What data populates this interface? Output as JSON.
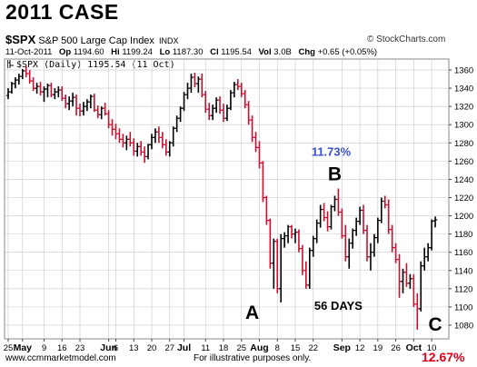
{
  "title": "2011 CASE",
  "header": {
    "symbol": "$SPX",
    "description": "S&P 500 Large Cap Index",
    "exchange": "INDX",
    "date": "11-Oct-2011",
    "op_label": "Op",
    "op": "1194.60",
    "hi_label": "Hi",
    "hi": "1199.24",
    "lo_label": "Lo",
    "lo": "1187.30",
    "cl_label": "Cl",
    "cl": "1195.54",
    "vol_label": "Vol",
    "vol": "3.0B",
    "chg_label": "Chg",
    "chg": "+0.65 (+0.05%)",
    "legend": "$SPX (Daily) 1195.54 (11 Oct)",
    "brand": "© StockCharts.com",
    "up_icon": "up-arrow-icon"
  },
  "footer": {
    "website": "www.ccmmarketmodel.com",
    "note": "For illustrative purposes only.",
    "percent": "12.67%"
  },
  "colors": {
    "down": "#c8102e",
    "up": "#000000",
    "blue": "#3a4fd0",
    "red": "#e0001a",
    "grid": "#c8c8c8"
  },
  "chart_data": {
    "type": "ohlc",
    "ylim": [
      1065,
      1372
    ],
    "y_ticks": [
      1080,
      1100,
      1120,
      1140,
      1160,
      1180,
      1200,
      1220,
      1240,
      1260,
      1280,
      1300,
      1320,
      1340,
      1360
    ],
    "x_ticks": [
      {
        "label": "25",
        "i": 0,
        "bold": false
      },
      {
        "label": "May",
        "i": 4,
        "bold": true
      },
      {
        "label": "9",
        "i": 10,
        "bold": false
      },
      {
        "label": "16",
        "i": 15,
        "bold": false
      },
      {
        "label": "23",
        "i": 20,
        "bold": false
      },
      {
        "label": "Jun",
        "i": 28,
        "bold": true
      },
      {
        "label": "6",
        "i": 30,
        "bold": false
      },
      {
        "label": "13",
        "i": 35,
        "bold": false
      },
      {
        "label": "20",
        "i": 40,
        "bold": false
      },
      {
        "label": "27",
        "i": 45,
        "bold": false
      },
      {
        "label": "Jul",
        "i": 49,
        "bold": true
      },
      {
        "label": "11",
        "i": 55,
        "bold": false
      },
      {
        "label": "18",
        "i": 60,
        "bold": false
      },
      {
        "label": "25",
        "i": 65,
        "bold": false
      },
      {
        "label": "Aug",
        "i": 70,
        "bold": true
      },
      {
        "label": "8",
        "i": 75,
        "bold": false
      },
      {
        "label": "15",
        "i": 80,
        "bold": false
      },
      {
        "label": "22",
        "i": 85,
        "bold": false
      },
      {
        "label": "Sep",
        "i": 93,
        "bold": true
      },
      {
        "label": "12",
        "i": 98,
        "bold": false
      },
      {
        "label": "19",
        "i": 103,
        "bold": false
      },
      {
        "label": "26",
        "i": 108,
        "bold": false
      },
      {
        "label": "Oct",
        "i": 113,
        "bold": true
      },
      {
        "label": "10",
        "i": 118,
        "bold": false
      }
    ],
    "annotations": [
      {
        "text": "11.73%",
        "i": 90,
        "y": 1266,
        "color": "blue",
        "size": 13
      },
      {
        "text": "B",
        "i": 91,
        "y": 1239,
        "color": "black",
        "size": 21
      },
      {
        "text": "A",
        "i": 68,
        "y": 1087,
        "color": "black",
        "size": 21
      },
      {
        "text": "56 DAYS",
        "i": 92,
        "y": 1097,
        "color": "black",
        "size": 13
      },
      {
        "text": "C",
        "i": 119,
        "y": 1074,
        "color": "black",
        "size": 21
      }
    ],
    "bars": [
      {
        "o": 1332,
        "h": 1340,
        "l": 1328,
        "c": 1336
      },
      {
        "o": 1336,
        "h": 1347,
        "l": 1334,
        "c": 1345
      },
      {
        "o": 1345,
        "h": 1352,
        "l": 1340,
        "c": 1349
      },
      {
        "o": 1349,
        "h": 1356,
        "l": 1344,
        "c": 1353
      },
      {
        "o": 1353,
        "h": 1361,
        "l": 1350,
        "c": 1359
      },
      {
        "o": 1359,
        "h": 1364,
        "l": 1352,
        "c": 1356
      },
      {
        "o": 1356,
        "h": 1360,
        "l": 1345,
        "c": 1348
      },
      {
        "o": 1348,
        "h": 1352,
        "l": 1337,
        "c": 1340
      },
      {
        "o": 1340,
        "h": 1346,
        "l": 1334,
        "c": 1342
      },
      {
        "o": 1342,
        "h": 1347,
        "l": 1332,
        "c": 1336
      },
      {
        "o": 1336,
        "h": 1342,
        "l": 1325,
        "c": 1339
      },
      {
        "o": 1339,
        "h": 1345,
        "l": 1330,
        "c": 1343
      },
      {
        "o": 1343,
        "h": 1346,
        "l": 1330,
        "c": 1333
      },
      {
        "o": 1333,
        "h": 1340,
        "l": 1328,
        "c": 1336
      },
      {
        "o": 1336,
        "h": 1342,
        "l": 1330,
        "c": 1338
      },
      {
        "o": 1338,
        "h": 1342,
        "l": 1326,
        "c": 1329
      },
      {
        "o": 1329,
        "h": 1333,
        "l": 1318,
        "c": 1323
      },
      {
        "o": 1323,
        "h": 1331,
        "l": 1316,
        "c": 1326
      },
      {
        "o": 1326,
        "h": 1335,
        "l": 1320,
        "c": 1330
      },
      {
        "o": 1330,
        "h": 1333,
        "l": 1310,
        "c": 1318
      },
      {
        "o": 1318,
        "h": 1323,
        "l": 1309,
        "c": 1315
      },
      {
        "o": 1315,
        "h": 1325,
        "l": 1310,
        "c": 1320
      },
      {
        "o": 1320,
        "h": 1328,
        "l": 1315,
        "c": 1325
      },
      {
        "o": 1325,
        "h": 1333,
        "l": 1318,
        "c": 1331
      },
      {
        "o": 1331,
        "h": 1334,
        "l": 1314,
        "c": 1316
      },
      {
        "o": 1316,
        "h": 1321,
        "l": 1307,
        "c": 1311
      },
      {
        "o": 1311,
        "h": 1320,
        "l": 1306,
        "c": 1318
      },
      {
        "o": 1318,
        "h": 1324,
        "l": 1310,
        "c": 1312
      },
      {
        "o": 1312,
        "h": 1316,
        "l": 1296,
        "c": 1300
      },
      {
        "o": 1300,
        "h": 1306,
        "l": 1288,
        "c": 1295
      },
      {
        "o": 1295,
        "h": 1301,
        "l": 1284,
        "c": 1290
      },
      {
        "o": 1290,
        "h": 1296,
        "l": 1280,
        "c": 1284
      },
      {
        "o": 1284,
        "h": 1290,
        "l": 1275,
        "c": 1280
      },
      {
        "o": 1280,
        "h": 1288,
        "l": 1272,
        "c": 1284
      },
      {
        "o": 1284,
        "h": 1292,
        "l": 1276,
        "c": 1280
      },
      {
        "o": 1280,
        "h": 1285,
        "l": 1266,
        "c": 1271
      },
      {
        "o": 1271,
        "h": 1280,
        "l": 1265,
        "c": 1276
      },
      {
        "o": 1276,
        "h": 1282,
        "l": 1266,
        "c": 1270
      },
      {
        "o": 1270,
        "h": 1276,
        "l": 1258,
        "c": 1265
      },
      {
        "o": 1265,
        "h": 1279,
        "l": 1262,
        "c": 1278
      },
      {
        "o": 1278,
        "h": 1290,
        "l": 1273,
        "c": 1286
      },
      {
        "o": 1286,
        "h": 1296,
        "l": 1280,
        "c": 1292
      },
      {
        "o": 1292,
        "h": 1298,
        "l": 1280,
        "c": 1286
      },
      {
        "o": 1286,
        "h": 1292,
        "l": 1274,
        "c": 1278
      },
      {
        "o": 1278,
        "h": 1284,
        "l": 1266,
        "c": 1270
      },
      {
        "o": 1270,
        "h": 1282,
        "l": 1265,
        "c": 1280
      },
      {
        "o": 1280,
        "h": 1298,
        "l": 1276,
        "c": 1296
      },
      {
        "o": 1296,
        "h": 1310,
        "l": 1292,
        "c": 1307
      },
      {
        "o": 1307,
        "h": 1320,
        "l": 1303,
        "c": 1318
      },
      {
        "o": 1318,
        "h": 1336,
        "l": 1315,
        "c": 1333
      },
      {
        "o": 1333,
        "h": 1346,
        "l": 1328,
        "c": 1340
      },
      {
        "o": 1340,
        "h": 1356,
        "l": 1335,
        "c": 1352
      },
      {
        "o": 1352,
        "h": 1357,
        "l": 1341,
        "c": 1345
      },
      {
        "o": 1345,
        "h": 1353,
        "l": 1335,
        "c": 1350
      },
      {
        "o": 1350,
        "h": 1356,
        "l": 1330,
        "c": 1333
      },
      {
        "o": 1333,
        "h": 1337,
        "l": 1313,
        "c": 1317
      },
      {
        "o": 1317,
        "h": 1324,
        "l": 1305,
        "c": 1310
      },
      {
        "o": 1310,
        "h": 1322,
        "l": 1305,
        "c": 1318
      },
      {
        "o": 1318,
        "h": 1330,
        "l": 1313,
        "c": 1327
      },
      {
        "o": 1327,
        "h": 1331,
        "l": 1312,
        "c": 1316
      },
      {
        "o": 1316,
        "h": 1323,
        "l": 1303,
        "c": 1307
      },
      {
        "o": 1307,
        "h": 1322,
        "l": 1304,
        "c": 1318
      },
      {
        "o": 1318,
        "h": 1338,
        "l": 1316,
        "c": 1335
      },
      {
        "o": 1335,
        "h": 1347,
        "l": 1330,
        "c": 1344
      },
      {
        "o": 1344,
        "h": 1350,
        "l": 1338,
        "c": 1342
      },
      {
        "o": 1342,
        "h": 1346,
        "l": 1330,
        "c": 1334
      },
      {
        "o": 1334,
        "h": 1338,
        "l": 1318,
        "c": 1322
      },
      {
        "o": 1322,
        "h": 1326,
        "l": 1300,
        "c": 1305
      },
      {
        "o": 1305,
        "h": 1310,
        "l": 1281,
        "c": 1286
      },
      {
        "o": 1286,
        "h": 1292,
        "l": 1270,
        "c": 1275
      },
      {
        "o": 1275,
        "h": 1282,
        "l": 1252,
        "c": 1258
      },
      {
        "o": 1258,
        "h": 1260,
        "l": 1215,
        "c": 1220
      },
      {
        "o": 1220,
        "h": 1222,
        "l": 1190,
        "c": 1195
      },
      {
        "o": 1195,
        "h": 1197,
        "l": 1142,
        "c": 1148
      },
      {
        "o": 1148,
        "h": 1175,
        "l": 1120,
        "c": 1172
      },
      {
        "o": 1172,
        "h": 1175,
        "l": 1115,
        "c": 1120
      },
      {
        "o": 1120,
        "h": 1180,
        "l": 1105,
        "c": 1175
      },
      {
        "o": 1175,
        "h": 1182,
        "l": 1165,
        "c": 1178
      },
      {
        "o": 1178,
        "h": 1190,
        "l": 1170,
        "c": 1188
      },
      {
        "o": 1188,
        "h": 1190,
        "l": 1175,
        "c": 1180
      },
      {
        "o": 1180,
        "h": 1186,
        "l": 1170,
        "c": 1182
      },
      {
        "o": 1182,
        "h": 1185,
        "l": 1160,
        "c": 1164
      },
      {
        "o": 1164,
        "h": 1168,
        "l": 1135,
        "c": 1140
      },
      {
        "o": 1140,
        "h": 1150,
        "l": 1120,
        "c": 1124
      },
      {
        "o": 1124,
        "h": 1165,
        "l": 1120,
        "c": 1162
      },
      {
        "o": 1162,
        "h": 1178,
        "l": 1155,
        "c": 1175
      },
      {
        "o": 1175,
        "h": 1196,
        "l": 1170,
        "c": 1192
      },
      {
        "o": 1192,
        "h": 1212,
        "l": 1187,
        "c": 1207
      },
      {
        "o": 1207,
        "h": 1214,
        "l": 1194,
        "c": 1198
      },
      {
        "o": 1198,
        "h": 1205,
        "l": 1183,
        "c": 1188
      },
      {
        "o": 1188,
        "h": 1212,
        "l": 1185,
        "c": 1210
      },
      {
        "o": 1210,
        "h": 1222,
        "l": 1205,
        "c": 1218
      },
      {
        "o": 1218,
        "h": 1230,
        "l": 1200,
        "c": 1204
      },
      {
        "o": 1204,
        "h": 1208,
        "l": 1175,
        "c": 1178
      },
      {
        "o": 1178,
        "h": 1190,
        "l": 1150,
        "c": 1155
      },
      {
        "o": 1155,
        "h": 1175,
        "l": 1142,
        "c": 1170
      },
      {
        "o": 1170,
        "h": 1186,
        "l": 1164,
        "c": 1184
      },
      {
        "o": 1184,
        "h": 1198,
        "l": 1178,
        "c": 1194
      },
      {
        "o": 1194,
        "h": 1210,
        "l": 1190,
        "c": 1206
      },
      {
        "o": 1206,
        "h": 1212,
        "l": 1180,
        "c": 1184
      },
      {
        "o": 1184,
        "h": 1190,
        "l": 1150,
        "c": 1155
      },
      {
        "o": 1155,
        "h": 1170,
        "l": 1140,
        "c": 1160
      },
      {
        "o": 1160,
        "h": 1180,
        "l": 1155,
        "c": 1176
      },
      {
        "o": 1176,
        "h": 1198,
        "l": 1170,
        "c": 1195
      },
      {
        "o": 1195,
        "h": 1220,
        "l": 1192,
        "c": 1216
      },
      {
        "o": 1216,
        "h": 1222,
        "l": 1208,
        "c": 1212
      },
      {
        "o": 1212,
        "h": 1218,
        "l": 1180,
        "c": 1185
      },
      {
        "o": 1185,
        "h": 1190,
        "l": 1160,
        "c": 1165
      },
      {
        "o": 1165,
        "h": 1170,
        "l": 1148,
        "c": 1152
      },
      {
        "o": 1152,
        "h": 1158,
        "l": 1110,
        "c": 1128
      },
      {
        "o": 1128,
        "h": 1142,
        "l": 1115,
        "c": 1138
      },
      {
        "o": 1138,
        "h": 1148,
        "l": 1122,
        "c": 1126
      },
      {
        "o": 1126,
        "h": 1136,
        "l": 1120,
        "c": 1131
      },
      {
        "o": 1131,
        "h": 1136,
        "l": 1100,
        "c": 1103
      },
      {
        "o": 1103,
        "h": 1115,
        "l": 1075,
        "c": 1098
      },
      {
        "o": 1098,
        "h": 1150,
        "l": 1095,
        "c": 1145
      },
      {
        "o": 1145,
        "h": 1165,
        "l": 1140,
        "c": 1155
      },
      {
        "o": 1155,
        "h": 1170,
        "l": 1150,
        "c": 1165
      },
      {
        "o": 1165,
        "h": 1196,
        "l": 1162,
        "c": 1194
      },
      {
        "o": 1194.6,
        "h": 1199.24,
        "l": 1187.3,
        "c": 1195.54
      }
    ]
  }
}
